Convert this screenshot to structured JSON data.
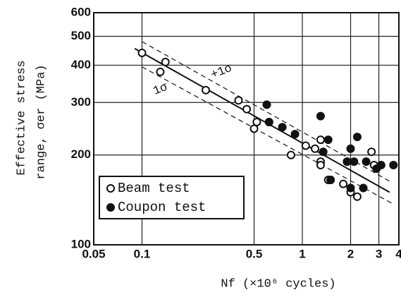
{
  "chart_data": {
    "type": "scatter",
    "xlabel": "Nf  (×10⁶ cycles)",
    "ylabel": [
      "Effective stress",
      "range, σer (MPa)"
    ],
    "xscale": "log",
    "yscale": "log",
    "xlim": [
      0.05,
      4
    ],
    "ylim": [
      100,
      600
    ],
    "xticks": [
      0.05,
      0.1,
      0.5,
      1,
      2,
      3,
      4
    ],
    "yticks": [
      100,
      200,
      300,
      400,
      500,
      600
    ],
    "grid": true,
    "legend": "lower left",
    "series": [
      {
        "name": "Beam test",
        "marker": "open",
        "color": "#111111",
        "x": [
          0.1,
          0.13,
          0.14,
          0.25,
          0.4,
          0.45,
          0.5,
          0.52,
          0.62,
          0.85,
          1.05,
          1.2,
          1.3,
          1.3,
          1.3,
          1.45,
          1.5,
          1.8,
          1.9,
          2.0,
          2.2,
          2.7,
          2.8
        ],
        "values": [
          440,
          380,
          410,
          330,
          305,
          285,
          245,
          258,
          258,
          200,
          215,
          210,
          225,
          190,
          185,
          165,
          165,
          160,
          190,
          150,
          145,
          205,
          185
        ]
      },
      {
        "name": "Coupon test",
        "marker": "filled",
        "color": "#111111",
        "x": [
          0.6,
          0.62,
          0.75,
          0.9,
          1.3,
          1.35,
          1.45,
          1.5,
          1.9,
          2.0,
          2.0,
          2.1,
          2.2,
          2.4,
          2.5,
          2.9,
          3.1,
          3.7
        ],
        "values": [
          295,
          258,
          248,
          235,
          270,
          205,
          225,
          165,
          190,
          210,
          155,
          190,
          230,
          155,
          190,
          180,
          185,
          185
        ]
      }
    ],
    "fit_lines": [
      {
        "style": "solid",
        "x": [
          0.09,
          3.5
        ],
        "values": [
          455,
          150
        ]
      },
      {
        "style": "dashed",
        "x": [
          0.1,
          3.6
        ],
        "values": [
          480,
          162
        ]
      },
      {
        "style": "dashed",
        "x": [
          0.1,
          3.6
        ],
        "values": [
          395,
          138
        ]
      }
    ],
    "annotations": [
      "+1σ",
      "1σ"
    ]
  }
}
